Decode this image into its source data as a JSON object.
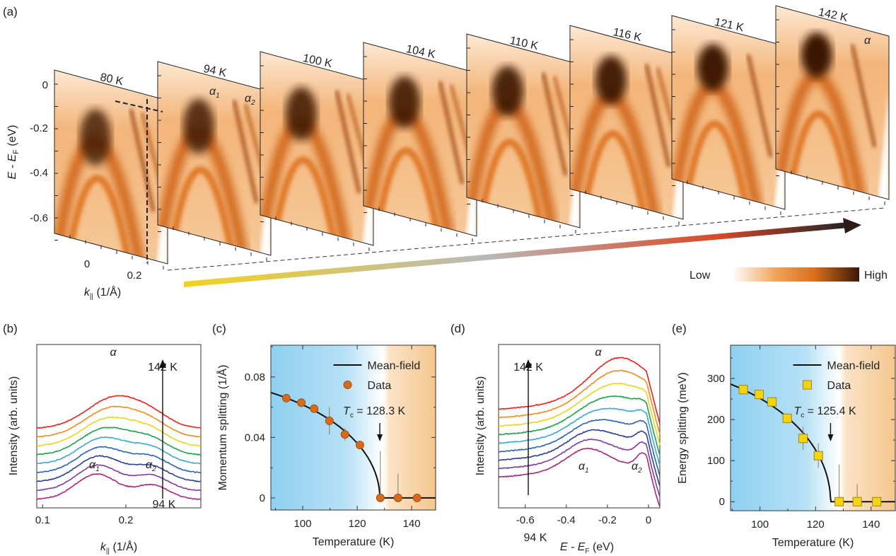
{
  "panel_labels": [
    "(a)",
    "(b)",
    "(c)",
    "(d)",
    "(e)"
  ],
  "panel_a": {
    "temperatures": [
      "80 K",
      "94 K",
      "100 K",
      "104 K",
      "110 K",
      "116 K",
      "121 K",
      "142 K"
    ],
    "ylabel_main": "E - E",
    "ylabel_sub": "F",
    "ylabel_unit": " (eV)",
    "yticks": [
      "0",
      "-0.2",
      "-0.4",
      "-0.6"
    ],
    "xticks": [
      "0",
      "0.2"
    ],
    "xlabel_main": "k",
    "xlabel_sub": "||",
    "xlabel_unit": " (1/Å)",
    "band_labels": {
      "alpha1": "α",
      "alpha1_sub": "1",
      "alpha2": "α",
      "alpha2_sub": "2",
      "alpha": "α"
    },
    "colorbar": {
      "low": "Low",
      "high": "High",
      "colors": [
        "#ffffff",
        "#f0a258",
        "#d96f1c",
        "#3a1906"
      ]
    },
    "arrow_colors": [
      "#f2d21c",
      "#b9b9b9",
      "#d94a2a",
      "#222222"
    ]
  },
  "chart_data": [
    {
      "panel": "b",
      "type": "line",
      "xlabel_main": "k",
      "xlabel_sub": "||",
      "xlabel_unit": " (1/Å)",
      "ylabel": "Intensity (arb. units)",
      "xticks": [
        "0.1",
        "0.2"
      ],
      "xlim": [
        0.093,
        0.29
      ],
      "annotations": {
        "top_T": "142 K",
        "bottom_T": "94 K",
        "alpha": "α",
        "alpha1": "α",
        "alpha1_sub": "1",
        "alpha2": "α",
        "alpha2_sub": "2"
      },
      "series_colors": [
        "#a6287e",
        "#7f3aa0",
        "#2c3e8c",
        "#2a63b3",
        "#3aa8d8",
        "#22a04a",
        "#e8d51f",
        "#f08a22",
        "#e8221c"
      ]
    },
    {
      "panel": "c",
      "type": "scatter",
      "xlabel": "Temperature (K)",
      "ylabel": "Momentum splitting (1/Å)",
      "xticks": [
        100,
        120,
        140
      ],
      "yticks": [
        0,
        0.04,
        0.08
      ],
      "ytick_labels": [
        "0",
        "0.04",
        "0.08"
      ],
      "xlim": [
        88.3,
        148.8
      ],
      "ylim": [
        -0.008,
        0.101
      ],
      "legend": {
        "fit": "Mean-field",
        "data": "Data"
      },
      "tc_label_main": "T",
      "tc_label_sub": "c",
      "tc_label_value": " = 128.3 K",
      "Tc": 128.3,
      "marker_color": "#d86a1e",
      "x": [
        94,
        99.5,
        104.2,
        109.8,
        115.5,
        121,
        128.5,
        135,
        142
      ],
      "y": [
        0.066,
        0.063,
        0.059,
        0.051,
        0.042,
        0.035,
        0,
        0,
        0
      ],
      "err_up": [
        0.002,
        0.003,
        0.002,
        0.009,
        0.004,
        0.001,
        0.031,
        0.016,
        0
      ],
      "err_down": [
        0.002,
        0.003,
        0.002,
        0.009,
        0.004,
        0.001,
        0,
        0,
        0
      ]
    },
    {
      "panel": "d",
      "type": "line",
      "xlabel_main": "E - E",
      "xlabel_sub": "F",
      "xlabel_unit": " (eV)",
      "ylabel": "Intensity (arb. units)",
      "xticks": [
        "-0.6",
        "-0.4",
        "-0.2",
        "0"
      ],
      "xtick_values": [
        -0.6,
        -0.4,
        -0.2,
        0
      ],
      "xlim": [
        -0.73,
        0.055
      ],
      "annotations": {
        "top_T": "142 K",
        "bottom_T": "94 K",
        "alpha": "α",
        "alpha1": "α",
        "alpha1_sub": "1",
        "alpha2": "α",
        "alpha2_sub": "2"
      },
      "series_colors": [
        "#a6287e",
        "#7f3aa0",
        "#2c3e8c",
        "#2a63b3",
        "#3aa8d8",
        "#22a04a",
        "#e8d51f",
        "#f08a22",
        "#e8221c"
      ]
    },
    {
      "panel": "e",
      "type": "scatter",
      "xlabel": "Temperature (K)",
      "ylabel": "Energy splitting (meV)",
      "xticks": [
        100,
        120,
        140
      ],
      "yticks": [
        0,
        100,
        200,
        300
      ],
      "ytick_labels": [
        "0",
        "100",
        "200",
        "300"
      ],
      "xlim": [
        89.4,
        148.7
      ],
      "ylim": [
        -22,
        381
      ],
      "legend": {
        "fit": "Mean-field",
        "data": "Data"
      },
      "tc_label_main": "T",
      "tc_label_sub": "c",
      "tc_label_value": " = 125.4 K",
      "Tc": 125.4,
      "marker_color": "#f5d312",
      "x": [
        94,
        99.7,
        104.3,
        109.8,
        115.5,
        121,
        128.5,
        135,
        142
      ],
      "y": [
        273,
        261,
        243,
        203,
        154,
        112,
        0,
        0,
        0
      ],
      "err_up": [
        4,
        6,
        6,
        12,
        28,
        30,
        90,
        42,
        0
      ],
      "err_down": [
        4,
        6,
        6,
        12,
        28,
        30,
        0,
        0,
        0
      ]
    }
  ]
}
